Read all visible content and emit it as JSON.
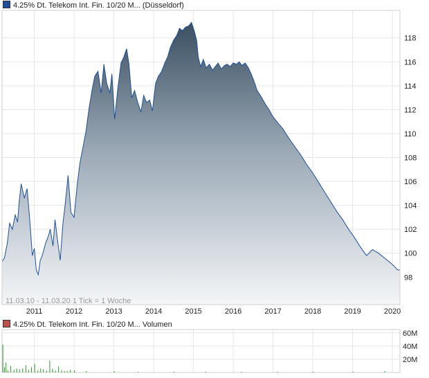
{
  "chart_data": [
    {
      "type": "area",
      "legend": {
        "label": "4.25% Dt. Telekom Int. Fin. 10/20 M... (Düsseldorf)",
        "color": "#1f4e9a"
      },
      "series": [
        {
          "name": "4.25% Dt. Telekom Int. Fin. 10/20 M... (Düsseldorf)",
          "x": [
            2010.19,
            2010.25,
            2010.32,
            2010.38,
            2010.45,
            2010.52,
            2010.58,
            2010.62,
            2010.67,
            2010.75,
            2010.82,
            2010.88,
            2010.95,
            2011.0,
            2011.05,
            2011.1,
            2011.15,
            2011.2,
            2011.28,
            2011.35,
            2011.4,
            2011.47,
            2011.52,
            2011.58,
            2011.65,
            2011.72,
            2011.78,
            2011.85,
            2011.92,
            2012.0,
            2012.08,
            2012.15,
            2012.22,
            2012.3,
            2012.38,
            2012.45,
            2012.52,
            2012.6,
            2012.68,
            2012.75,
            2012.82,
            2012.9,
            2012.95,
            2013.02,
            2013.1,
            2013.18,
            2013.25,
            2013.32,
            2013.38,
            2013.45,
            2013.52,
            2013.6,
            2013.68,
            2013.75,
            2013.82,
            2013.9,
            2013.97,
            2014.05,
            2014.12,
            2014.2,
            2014.28,
            2014.35,
            2014.42,
            2014.5,
            2014.58,
            2014.65,
            2014.72,
            2014.8,
            2014.88,
            2014.95,
            2015.02,
            2015.08,
            2015.12,
            2015.18,
            2015.25,
            2015.32,
            2015.4,
            2015.48,
            2015.55,
            2015.62,
            2015.7,
            2015.78,
            2015.85,
            2015.92,
            2016.0,
            2016.08,
            2016.15,
            2016.22,
            2016.3,
            2016.38,
            2016.45,
            2016.52,
            2016.6,
            2016.7,
            2016.8,
            2016.9,
            2017.0,
            2017.12,
            2017.25,
            2017.4,
            2017.55,
            2017.7,
            2017.85,
            2018.0,
            2018.15,
            2018.3,
            2018.45,
            2018.6,
            2018.75,
            2018.9,
            2019.05,
            2019.2,
            2019.35,
            2019.5,
            2019.65,
            2019.8,
            2019.95,
            2020.05,
            2020.1,
            2020.14,
            2020.17,
            2020.19
          ],
          "values": [
            99.3,
            99.6,
            100.8,
            102.5,
            102.0,
            103.2,
            102.6,
            104.3,
            105.8,
            104.6,
            105.4,
            103.0,
            99.8,
            100.4,
            98.6,
            98.2,
            99.4,
            99.8,
            100.8,
            101.4,
            102.0,
            100.6,
            102.8,
            101.2,
            99.4,
            102.5,
            104.2,
            106.5,
            103.4,
            103.0,
            105.8,
            107.6,
            108.8,
            110.2,
            112.2,
            113.6,
            114.8,
            115.2,
            113.4,
            115.8,
            114.2,
            113.4,
            115.0,
            111.2,
            113.8,
            115.9,
            116.4,
            117.1,
            115.8,
            113.0,
            113.6,
            112.6,
            111.8,
            113.2,
            112.6,
            112.8,
            111.9,
            114.2,
            114.8,
            115.2,
            115.9,
            116.4,
            117.2,
            117.8,
            118.2,
            118.8,
            118.6,
            118.9,
            119.0,
            119.3,
            118.6,
            117.8,
            116.4,
            115.6,
            116.2,
            115.5,
            115.8,
            115.3,
            115.6,
            115.9,
            115.4,
            115.7,
            115.8,
            115.6,
            115.9,
            115.8,
            116.0,
            115.7,
            115.9,
            115.5,
            115.0,
            114.4,
            113.6,
            113.1,
            112.5,
            112.0,
            111.4,
            110.9,
            110.4,
            109.6,
            108.9,
            108.2,
            107.4,
            106.7,
            105.9,
            105.1,
            104.3,
            103.5,
            102.8,
            102.0,
            101.3,
            100.5,
            99.8,
            100.3,
            100.0,
            99.6,
            99.2,
            98.9,
            98.7,
            98.6,
            98.6,
            98.6
          ],
          "color": "#1f4e9a"
        }
      ],
      "xticks": [
        "2011",
        "2012",
        "2013",
        "2014",
        "2015",
        "2016",
        "2017",
        "2018",
        "2019",
        "2020"
      ],
      "xtick_values": [
        2011,
        2012,
        2013,
        2014,
        2015,
        2016,
        2017,
        2018,
        2019,
        2020
      ],
      "yticks": [
        98,
        100,
        102,
        104,
        106,
        108,
        110,
        112,
        114,
        116,
        118
      ],
      "xlim": [
        2010.19,
        2020.19
      ],
      "ylim": [
        95.7,
        120.3
      ],
      "annotation": "11.03.10 - 11.03.20   1 Tick = 1 Woche",
      "grid": true
    },
    {
      "type": "bar",
      "legend": {
        "label": "4.25% Dt. Telekom Int. Fin. 10/20 M... Volumen",
        "color": "#c0504d"
      },
      "series": [
        {
          "name": "4.25% Dt. Telekom Int. Fin. 10/20 M... Volumen",
          "x": [
            2010.2,
            2010.24,
            2010.28,
            2010.33,
            2010.4,
            2010.48,
            2010.55,
            2010.62,
            2010.7,
            2010.78,
            2010.85,
            2010.92,
            2011.0,
            2011.08,
            2011.15,
            2011.22,
            2011.3,
            2011.38,
            2011.45,
            2011.52,
            2011.6,
            2011.68,
            2011.75,
            2011.82,
            2011.9,
            2012.0,
            2012.3,
            2013.0,
            2013.6,
            2014.5,
            2015.3,
            2016.2,
            2017.1,
            2018.0,
            2019.0,
            2019.8
          ],
          "values": [
            42,
            8,
            15,
            3,
            10,
            4,
            6,
            5,
            6,
            11,
            4,
            8,
            13,
            3,
            6,
            5,
            3,
            18,
            6,
            3,
            9,
            3,
            2,
            2,
            4,
            3,
            2,
            2,
            1,
            1,
            1,
            1,
            1,
            1,
            1,
            2
          ],
          "color": "#2a9a2a"
        }
      ],
      "yticks_labels": [
        "20M",
        "40M",
        "60M"
      ],
      "yticks": [
        20,
        40,
        60
      ],
      "ylim": [
        0,
        65
      ],
      "xlim": [
        2010.19,
        2020.19
      ],
      "grid": true
    }
  ]
}
